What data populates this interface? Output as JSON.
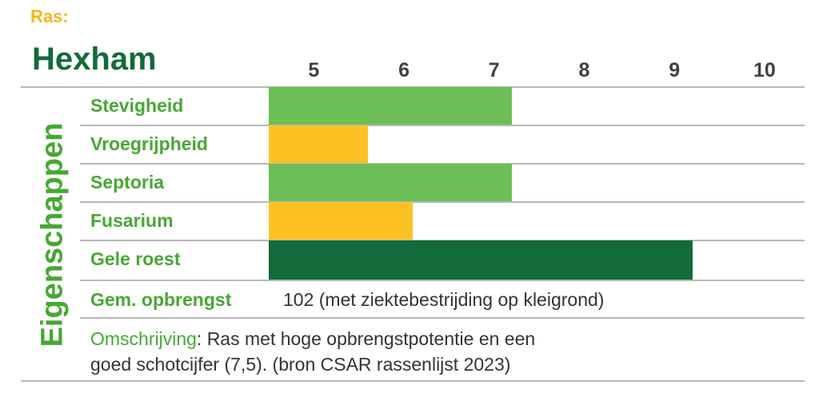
{
  "header": {
    "ras_label": "Ras:",
    "variety": "Hexham"
  },
  "section_title": "Eigenschappen",
  "chart_data": {
    "type": "bar",
    "orientation": "horizontal",
    "xlim": [
      4.5,
      10
    ],
    "ticks": [
      "5",
      "6",
      "7",
      "8",
      "9",
      "10"
    ],
    "categories": [
      "Stevigheid",
      "Vroegrijpheid",
      "Septoria",
      "Fusarium",
      "Gele roest"
    ],
    "values": [
      7.2,
      5.6,
      7.2,
      6.1,
      9.2
    ],
    "bar_colors": [
      "#6cbf56",
      "#fcc223",
      "#6cbf56",
      "#fcc223",
      "#136a3a"
    ]
  },
  "yield": {
    "label": "Gem. opbrengst",
    "value": "102 (met ziektebestrijding op kleigrond)"
  },
  "description": {
    "label": "Omschrijving",
    "line1": ": Ras met hoge opbrengstpotentie en een",
    "line2": "goed schotcijfer (7,5). (bron CSAR rassenlijst 2023)"
  },
  "colors": {
    "dark_green": "#136a3a",
    "light_green": "#6cbf56",
    "label_green": "#46a833",
    "orange": "#fcc223",
    "ras_orange": "#f9b51a"
  }
}
